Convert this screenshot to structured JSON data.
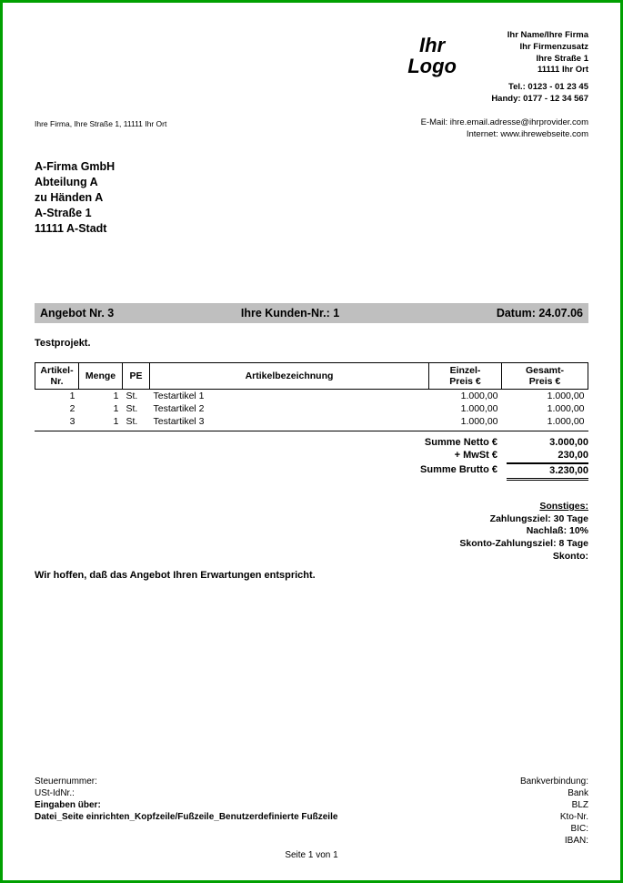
{
  "colors": {
    "frame_border": "#00a000",
    "title_bar_bg": "#bfbfbf",
    "page_bg": "#ffffff",
    "text": "#000000"
  },
  "logo": {
    "line1": "Ihr",
    "line2": "Logo"
  },
  "company": {
    "name": "Ihr Name/Ihre Firma",
    "addition": "Ihr Firmenzusatz",
    "street": "Ihre Straße 1",
    "city": "11111 Ihr Ort",
    "tel": "Tel.: 0123 - 01 23 45",
    "mobile": "Handy: 0177 - 12 34 567",
    "email": "E-Mail: ihre.email.adresse@ihrprovider.com",
    "web": "Internet: www.ihrewebseite.com"
  },
  "return_address": "Ihre Firma, Ihre Straße 1, 11111 Ihr Ort",
  "recipient": {
    "l1": "A-Firma GmbH",
    "l2": "Abteilung A",
    "l3": "zu Händen A",
    "l4": "A-Straße 1",
    "l5": "11111 A-Stadt"
  },
  "title": {
    "offer": "Angebot Nr. 3",
    "customer": "Ihre Kunden-Nr.: 1",
    "date": "Datum: 24.07.06"
  },
  "project": "Testprojekt.",
  "table": {
    "headers": {
      "nr": "Artikel-\nNr.",
      "qty": "Menge",
      "pe": "PE",
      "desc": "Artikelbezeichnung",
      "ep": "Einzel-\nPreis €",
      "gp": "Gesamt-\nPreis €"
    },
    "rows": [
      {
        "nr": "1",
        "qty": "1",
        "pe": "St.",
        "desc": "Testartikel 1",
        "ep": "1.000,00",
        "gp": "1.000,00"
      },
      {
        "nr": "2",
        "qty": "1",
        "pe": "St.",
        "desc": "Testartikel 2",
        "ep": "1.000,00",
        "gp": "1.000,00"
      },
      {
        "nr": "3",
        "qty": "1",
        "pe": "St.",
        "desc": "Testartikel 3",
        "ep": "1.000,00",
        "gp": "1.000,00"
      }
    ]
  },
  "totals": {
    "net_label": "Summe Netto  €",
    "net_value": "3.000,00",
    "vat_label": "+ MwSt  €",
    "vat_value": "230,00",
    "gross_label": "Summe Brutto  €",
    "gross_value": "3.230,00"
  },
  "extras": {
    "header": "Sonstiges:",
    "l1": "Zahlungsziel: 30 Tage",
    "l2": "Nachlaß: 10%",
    "l3": "Skonto-Zahlungsziel: 8 Tage",
    "l4": "Skonto: "
  },
  "closing": "Wir hoffen, daß das Angebot Ihren Erwartungen entspricht.",
  "footer": {
    "left": {
      "tax": "Steuernummer:",
      "vat_id": "USt-IdNr.:",
      "inputs": "Eingaben über:",
      "path": "Datei_Seite einrichten_Kopfzeile/Fußzeile_Benutzerdefinierte Fußzeile"
    },
    "right": {
      "bank_header": "Bankverbindung:",
      "bank": "Bank",
      "blz": "BLZ",
      "kto": "Kto-Nr.",
      "bic": "BIC:",
      "iban": "IBAN:"
    },
    "page": "Seite 1 von 1"
  }
}
